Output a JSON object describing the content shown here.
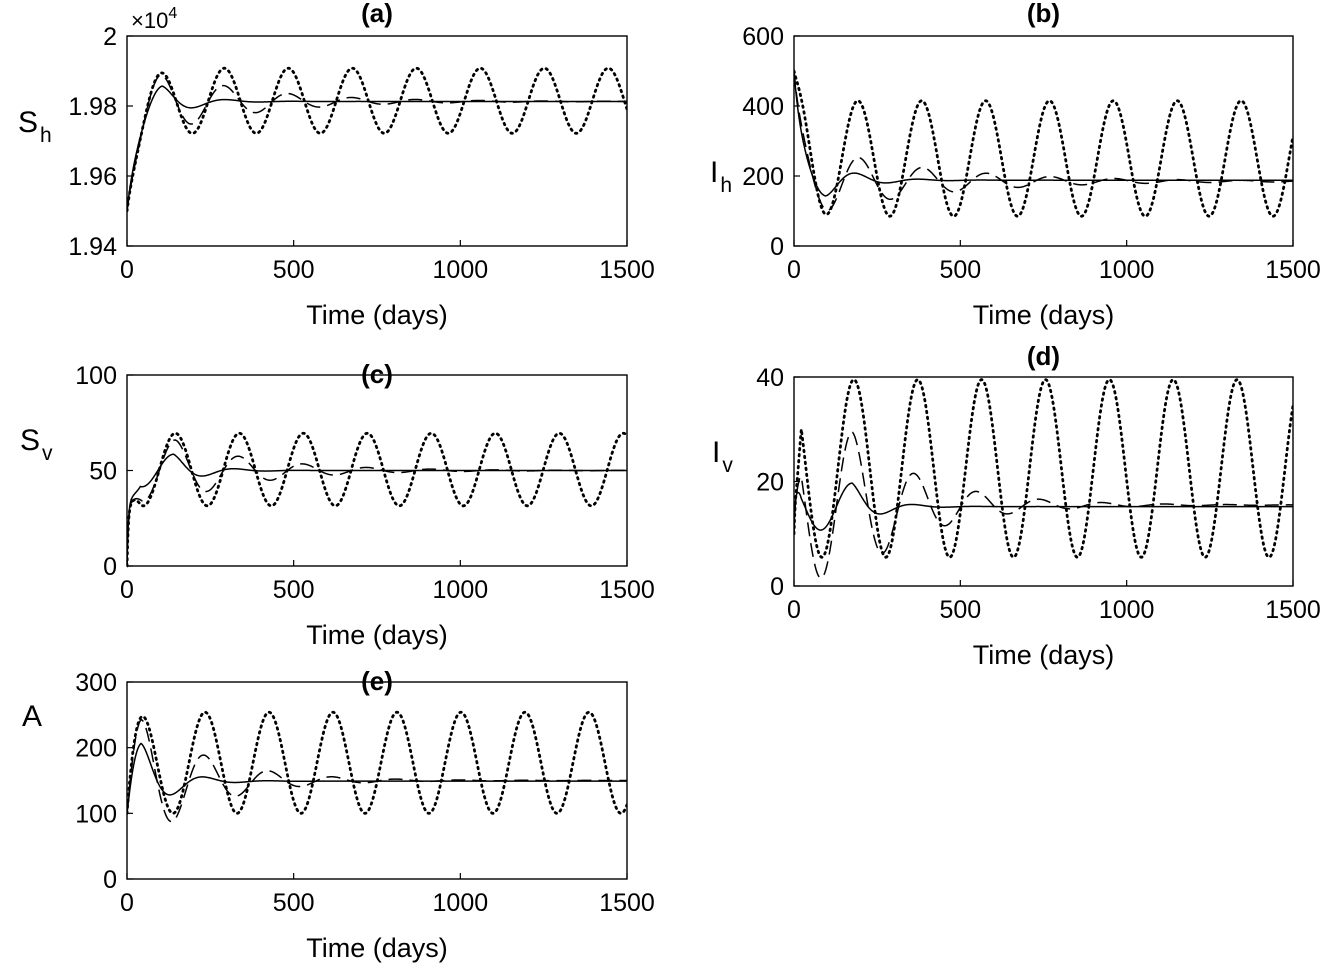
{
  "figure": {
    "background": "#ffffff"
  },
  "series_styles": {
    "solid": {
      "dasharray": "",
      "width": 1.5,
      "color": "#000000"
    },
    "dashed": {
      "dasharray": "14 7",
      "width": 1.5,
      "color": "#000000"
    },
    "dotted": {
      "dasharray": "1.5 4.5",
      "width": 2.8,
      "color": "#000000"
    }
  },
  "chart_data": [
    {
      "id": "a",
      "type": "line",
      "title": "(a)",
      "xlabel": "Time (days)",
      "ylabel": {
        "main": "S",
        "sub": "h"
      },
      "y_exponent": "×10",
      "y_exponent_power": "4",
      "xlim": [
        0,
        1500
      ],
      "ylim": [
        1.94,
        2.0
      ],
      "xticks": [
        0,
        500,
        1000,
        1500
      ],
      "xtick_labels": [
        "0",
        "500",
        "1000",
        "1500"
      ],
      "yticks": [
        1.94,
        1.96,
        1.98,
        2.0
      ],
      "ytick_labels": [
        "1.94",
        "1.96",
        "1.98",
        "2"
      ],
      "grid": false,
      "series": [
        {
          "style": "dotted",
          "curve": {
            "kind": "osc",
            "start": 1.95,
            "eq": 1.9815,
            "rise": 30,
            "amp": 0.0093,
            "decay": 0,
            "period": 192,
            "phase": 100,
            "shape": "peak"
          }
        },
        {
          "style": "dashed",
          "curve": {
            "kind": "osc",
            "start": 1.95,
            "eq": 1.9813,
            "rise": 30,
            "amp": 0.009,
            "decay": 0.0036,
            "period": 192,
            "phase": 100,
            "shape": "peak"
          }
        },
        {
          "style": "solid",
          "curve": {
            "kind": "osc",
            "start": 1.95,
            "eq": 1.9813,
            "rise": 30,
            "amp": 0.0055,
            "decay": 0.012,
            "period": 200,
            "phase": 105,
            "shape": "peak"
          }
        }
      ]
    },
    {
      "id": "b",
      "type": "line",
      "title": "(b)",
      "xlabel": "Time (days)",
      "ylabel": {
        "main": "I",
        "sub": "h"
      },
      "xlim": [
        0,
        1500
      ],
      "ylim": [
        0,
        600
      ],
      "xticks": [
        0,
        500,
        1000,
        1500
      ],
      "xtick_labels": [
        "0",
        "500",
        "1000",
        "1500"
      ],
      "yticks": [
        0,
        200,
        400,
        600
      ],
      "ytick_labels": [
        "0",
        "200",
        "400",
        "600"
      ],
      "grid": false,
      "series": [
        {
          "style": "dotted",
          "curve": {
            "kind": "osc",
            "start": 500,
            "eq": 250,
            "rise": 22,
            "amp": 165,
            "decay": 0,
            "period": 192,
            "phase": 96,
            "shape": "trough"
          }
        },
        {
          "style": "dashed",
          "curve": {
            "kind": "osc",
            "start": 500,
            "eq": 185,
            "rise": 22,
            "amp": 88,
            "decay": 0.0028,
            "period": 192,
            "phase": 100,
            "shape": "trough"
          }
        },
        {
          "style": "solid",
          "curve": {
            "kind": "osc",
            "start": 500,
            "eq": 188,
            "rise": 22,
            "amp": 50,
            "decay": 0.01,
            "period": 190,
            "phase": 95,
            "shape": "trough"
          }
        }
      ]
    },
    {
      "id": "c",
      "type": "line",
      "title": "(c)",
      "xlabel": "Time (days)",
      "ylabel": {
        "main": "S",
        "sub": "v"
      },
      "xlim": [
        0,
        1500
      ],
      "ylim": [
        0,
        100
      ],
      "xticks": [
        0,
        500,
        1000,
        1500
      ],
      "xtick_labels": [
        "0",
        "500",
        "1000",
        "1500"
      ],
      "yticks": [
        0,
        50,
        100
      ],
      "ytick_labels": [
        "0",
        "50",
        "100"
      ],
      "grid": false,
      "series": [
        {
          "style": "dotted",
          "curve": {
            "kind": "osc",
            "start": 0,
            "eq": 50.5,
            "rise": 4,
            "amp": 19,
            "decay": 0,
            "period": 192,
            "phase": 145,
            "shape": "peak",
            "plateau": 33,
            "plateau_end": 40
          }
        },
        {
          "style": "dashed",
          "curve": {
            "kind": "osc",
            "start": 0,
            "eq": 50,
            "rise": 4,
            "amp": 16,
            "decay": 0.004,
            "period": 192,
            "phase": 145,
            "shape": "peak",
            "plateau": 33,
            "plateau_end": 40
          }
        },
        {
          "style": "solid",
          "curve": {
            "kind": "osc",
            "start": 0,
            "eq": 50,
            "rise": 4,
            "amp": 8.5,
            "decay": 0.012,
            "period": 190,
            "phase": 140,
            "shape": "peak",
            "plateau": 35,
            "plateau_end": 40
          }
        }
      ]
    },
    {
      "id": "d",
      "type": "line",
      "title": "(d)",
      "xlabel": "Time (days)",
      "ylabel": {
        "main": "I",
        "sub": "v"
      },
      "xlim": [
        0,
        1500
      ],
      "ylim": [
        0,
        40
      ],
      "xticks": [
        0,
        500,
        1000,
        1500
      ],
      "xtick_labels": [
        "0",
        "500",
        "1000",
        "1500"
      ],
      "yticks": [
        0,
        20,
        40
      ],
      "ytick_labels": [
        "0",
        "20",
        "40"
      ],
      "grid": false,
      "series": [
        {
          "style": "dotted",
          "curve": {
            "kind": "osc",
            "start": 10,
            "eq": 22.5,
            "rise": 3,
            "amp": 17,
            "decay": 0,
            "period": 192,
            "phase": 180,
            "shape": "peak",
            "plateau": 17,
            "plateau_end": 22
          }
        },
        {
          "style": "dashed",
          "curve": {
            "kind": "osc",
            "start": 10,
            "eq": 15.5,
            "rise": 3,
            "amp": 14,
            "decay": 0.0045,
            "period": 188,
            "phase": 175,
            "shape": "peak",
            "plateau": 17,
            "plateau_end": 22
          }
        },
        {
          "style": "solid",
          "curve": {
            "kind": "osc",
            "start": 10,
            "eq": 15.2,
            "rise": 3,
            "amp": 4.5,
            "decay": 0.013,
            "period": 190,
            "phase": 175,
            "shape": "peak",
            "plateau": 18,
            "plateau_end": 22
          }
        }
      ]
    },
    {
      "id": "e",
      "type": "line",
      "title": "(e)",
      "xlabel": "Time (days)",
      "ylabel": {
        "main": "A",
        "sub": ""
      },
      "xlim": [
        0,
        1500
      ],
      "ylim": [
        0,
        300
      ],
      "xticks": [
        0,
        500,
        1000,
        1500
      ],
      "xtick_labels": [
        "0",
        "500",
        "1000",
        "1500"
      ],
      "yticks": [
        0,
        100,
        200,
        300
      ],
      "ytick_labels": [
        "0",
        "100",
        "200",
        "300"
      ],
      "grid": false,
      "series": [
        {
          "style": "dotted",
          "curve": {
            "kind": "osc",
            "start": 100,
            "eq": 177,
            "rise": 14,
            "amp": 77,
            "decay": 0,
            "period": 192,
            "phase": 42,
            "shape": "peak"
          }
        },
        {
          "style": "dashed",
          "curve": {
            "kind": "osc",
            "start": 100,
            "eq": 150,
            "rise": 14,
            "amp": 100,
            "decay": 0.005,
            "period": 192,
            "phase": 42,
            "shape": "peak"
          }
        },
        {
          "style": "solid",
          "curve": {
            "kind": "osc",
            "start": 100,
            "eq": 149,
            "rise": 14,
            "amp": 63,
            "decay": 0.012,
            "period": 195,
            "phase": 42,
            "shape": "peak"
          }
        }
      ]
    }
  ]
}
